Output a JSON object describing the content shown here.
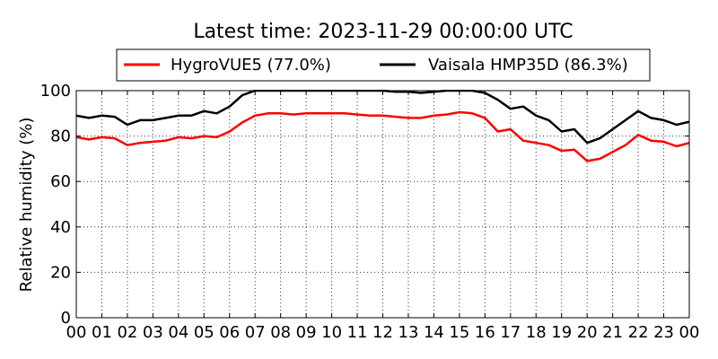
{
  "chart_data": {
    "type": "line",
    "title": "Latest time: 2023-11-29 00:00:00 UTC",
    "xlabel": "",
    "ylabel": "Relative humidity (%)",
    "xlim": [
      0,
      24
    ],
    "ylim": [
      0,
      100
    ],
    "grid": true,
    "legend_placement": "top",
    "x_tick_labels": [
      "00",
      "01",
      "02",
      "03",
      "04",
      "05",
      "06",
      "07",
      "08",
      "09",
      "10",
      "11",
      "12",
      "13",
      "14",
      "15",
      "16",
      "17",
      "18",
      "19",
      "20",
      "21",
      "22",
      "23",
      "00"
    ],
    "y_ticks": [
      0,
      20,
      40,
      60,
      80,
      100
    ],
    "x": [
      0,
      0.5,
      1,
      1.5,
      2,
      2.5,
      3,
      3.5,
      4,
      4.5,
      5,
      5.5,
      6,
      6.5,
      7,
      7.5,
      8,
      8.5,
      9,
      9.5,
      10,
      10.5,
      11,
      11.5,
      12,
      12.5,
      13,
      13.5,
      14,
      14.5,
      15,
      15.5,
      16,
      16.5,
      17,
      17.5,
      18,
      18.5,
      19,
      19.5,
      20,
      20.5,
      21,
      21.5,
      22,
      22.5,
      23,
      23.5,
      24
    ],
    "series": [
      {
        "name": "HygroVUE5 (77.0%)",
        "color": "#ff0000",
        "values": [
          79.5,
          78.5,
          79.5,
          79,
          76,
          77,
          77.5,
          78,
          79.5,
          79,
          80,
          79.5,
          82,
          86,
          89,
          90,
          90,
          89.5,
          90,
          90,
          90,
          90,
          89.5,
          89,
          89,
          88.5,
          88,
          88,
          89,
          89.5,
          90.5,
          90,
          88,
          82,
          83,
          78,
          77,
          76,
          73.5,
          74,
          69,
          70,
          73,
          76,
          80.5,
          78,
          77.5,
          75.5,
          77
        ]
      },
      {
        "name": "Vaisala HMP35D (86.3%)",
        "color": "#000000",
        "values": [
          89,
          88,
          89,
          88.5,
          85,
          87,
          87,
          88,
          89,
          89,
          91,
          90,
          93,
          98,
          100,
          100,
          100,
          100,
          100,
          100,
          100,
          100,
          100,
          100,
          100,
          99.5,
          99.5,
          99,
          99.5,
          100,
          100,
          100,
          99,
          96,
          92,
          93,
          89,
          87,
          82,
          83,
          77,
          79,
          83,
          87,
          91,
          88,
          87,
          85,
          86.3
        ]
      }
    ]
  }
}
